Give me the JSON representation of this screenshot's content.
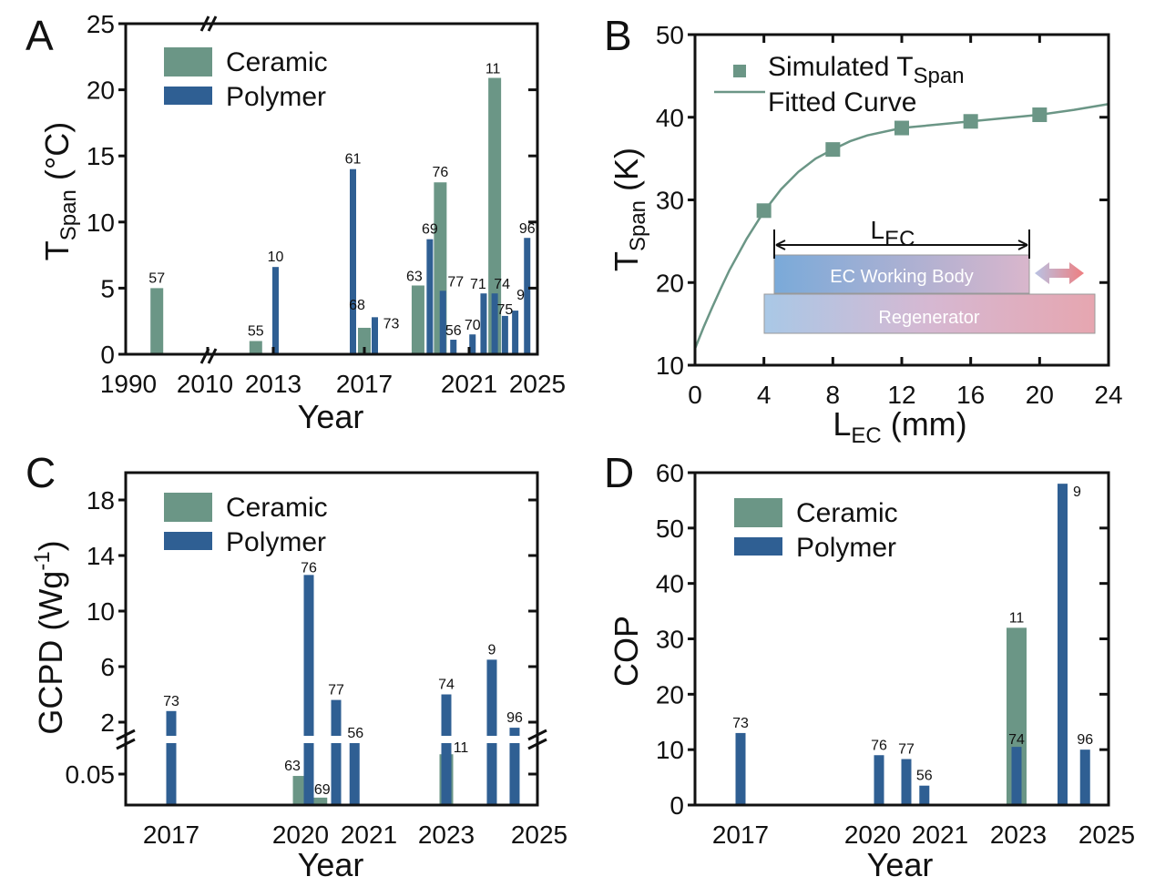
{
  "colors": {
    "ceramic": "#6b9686",
    "polymer": "#2f5f93",
    "axis": "#111111"
  },
  "chart_data": [
    {
      "panel": "A",
      "type": "bar",
      "xlabel": "Year",
      "ylabel": {
        "main": "T",
        "sub": "Span",
        "rest": " (°C)"
      },
      "ylim": [
        0,
        25
      ],
      "yticks": [
        "0",
        "5",
        "10",
        "15",
        "20",
        "25"
      ],
      "xticks": [
        "1990",
        "2010",
        "2013",
        "2017",
        "2021",
        "2025"
      ],
      "xbreak": "between 1990 and 2010",
      "legend": {
        "position": "top-left",
        "entries": [
          "Ceramic",
          "Polymer"
        ]
      },
      "bars": [
        {
          "label": "57",
          "material": "Ceramic",
          "year": 1997.6,
          "value": 5.0
        },
        {
          "label": "55",
          "material": "Ceramic",
          "year": 2012.2,
          "value": 1.0
        },
        {
          "label": "10",
          "material": "Polymer",
          "year": 2013.1,
          "value": 6.6
        },
        {
          "label": "61",
          "material": "Polymer",
          "year": 2016.5,
          "value": 14.0
        },
        {
          "label": "68",
          "material": "Ceramic",
          "year": 2017.0,
          "value": 2.0
        },
        {
          "label": "73",
          "material": "Polymer",
          "year": 2017.4,
          "value": 2.8
        },
        {
          "label": "63",
          "material": "Ceramic",
          "year": 2019.05,
          "value": 5.2
        },
        {
          "label": "76",
          "material": "Ceramic",
          "year": 2019.9,
          "value": 13.0
        },
        {
          "label": "69",
          "material": "Polymer",
          "year": 2019.5,
          "value": 8.7
        },
        {
          "label": "77",
          "material": "Polymer",
          "year": 2020.0,
          "value": 4.8
        },
        {
          "label": "56",
          "material": "Polymer",
          "year": 2020.4,
          "value": 1.1
        },
        {
          "label": "70",
          "material": "Polymer",
          "year": 2021.2,
          "value": 1.5
        },
        {
          "label": "71",
          "material": "Polymer",
          "year": 2021.85,
          "value": 4.6
        },
        {
          "label": "11",
          "material": "Ceramic",
          "year": 2022.5,
          "value": 20.9
        },
        {
          "label": "74",
          "material": "Polymer",
          "year": 2022.5,
          "value": 4.6
        },
        {
          "label": "75",
          "material": "Polymer",
          "year": 2023.1,
          "value": 2.9
        },
        {
          "label": "9",
          "material": "Polymer",
          "year": 2023.7,
          "value": 3.3
        },
        {
          "label": "96",
          "material": "Polymer",
          "year": 2024.4,
          "value": 8.8
        }
      ]
    },
    {
      "panel": "B",
      "type": "scatter",
      "xlabel": {
        "main": "L",
        "sub": "EC",
        "rest": " (mm)"
      },
      "ylabel": {
        "main": "T",
        "sub": "Span",
        "rest": " (K)"
      },
      "xlim": [
        0,
        24
      ],
      "ylim": [
        10,
        50
      ],
      "xticks": [
        "0",
        "4",
        "8",
        "12",
        "16",
        "20",
        "24"
      ],
      "yticks": [
        "10",
        "20",
        "30",
        "40",
        "50"
      ],
      "legend": {
        "position": "top-left",
        "simulated": {
          "main": "Simulated T",
          "sub": "Span"
        },
        "fitted": "Fitted Curve"
      },
      "points": [
        [
          4,
          28.7
        ],
        [
          8,
          36.1
        ],
        [
          12,
          38.7
        ],
        [
          16,
          39.5
        ],
        [
          20,
          40.3
        ]
      ],
      "fitted_curve": [
        [
          0,
          12
        ],
        [
          0.5,
          14.6
        ],
        [
          1,
          17
        ],
        [
          1.5,
          19.3
        ],
        [
          2,
          21.5
        ],
        [
          3,
          25.3
        ],
        [
          4,
          28.6
        ],
        [
          5,
          31.3
        ],
        [
          6,
          33.4
        ],
        [
          7,
          35
        ],
        [
          8,
          36.1
        ],
        [
          9,
          37.1
        ],
        [
          10,
          37.8
        ],
        [
          12,
          38.7
        ],
        [
          14,
          39.1
        ],
        [
          16,
          39.5
        ],
        [
          18,
          39.9
        ],
        [
          20,
          40.3
        ],
        [
          22,
          40.9
        ],
        [
          24,
          41.6
        ]
      ],
      "inset": {
        "dimension": {
          "main": "L",
          "sub": "EC"
        },
        "working_body": "EC Working Body",
        "regenerator": "Regenerator"
      }
    },
    {
      "panel": "C",
      "type": "bar",
      "xlabel": "Year",
      "ylabel": {
        "main": "GCPD (Wg",
        "sup": "-1",
        "rest": ")"
      },
      "ybreak": "between 0.1 and 1",
      "yticks_lower": [
        "0.05"
      ],
      "yticks_upper": [
        "2",
        "6",
        "10",
        "14",
        "18"
      ],
      "xticks": [
        "2017",
        "2020",
        "2021",
        "2023",
        "2025"
      ],
      "legend": {
        "position": "top-left",
        "entries": [
          "Ceramic",
          "Polymer"
        ]
      },
      "bars": [
        {
          "label": "73",
          "material": "Polymer",
          "year": 2017.0,
          "value": 2.8
        },
        {
          "label": "63",
          "material": "Ceramic",
          "year": 2019.98,
          "value": 0.047
        },
        {
          "label": "76",
          "material": "Polymer",
          "year": 2020.12,
          "value": 12.6
        },
        {
          "label": "69",
          "material": "Ceramic",
          "year": 2020.29,
          "value": 0.012
        },
        {
          "label": "77",
          "material": "Polymer",
          "year": 2020.52,
          "value": 3.6
        },
        {
          "label": "56",
          "material": "Polymer",
          "year": 2020.79,
          "value": 0.5
        },
        {
          "label": "11",
          "material": "Ceramic",
          "year": 2023.0,
          "value": 0.082
        },
        {
          "label": "74",
          "material": "Polymer",
          "year": 2023.0,
          "value": 4.0
        },
        {
          "label": "9",
          "material": "Polymer",
          "year": 2023.98,
          "value": 6.5
        },
        {
          "label": "96",
          "material": "Polymer",
          "year": 2024.47,
          "value": 1.6
        }
      ]
    },
    {
      "panel": "D",
      "type": "bar",
      "xlabel": "Year",
      "ylabel": "COP",
      "ylim": [
        0,
        60
      ],
      "yticks": [
        "0",
        "10",
        "20",
        "30",
        "40",
        "50",
        "60"
      ],
      "xticks": [
        "2017",
        "2020",
        "2021",
        "2023",
        "2025"
      ],
      "legend": {
        "position": "top-left",
        "entries": [
          "Ceramic",
          "Polymer"
        ]
      },
      "bars": [
        {
          "label": "73",
          "material": "Polymer",
          "year": 2017.0,
          "value": 13.0
        },
        {
          "label": "76",
          "material": "Polymer",
          "year": 2020.0,
          "value": 9.0
        },
        {
          "label": "77",
          "material": "Polymer",
          "year": 2020.5,
          "value": 8.3
        },
        {
          "label": "56",
          "material": "Polymer",
          "year": 2020.83,
          "value": 3.5
        },
        {
          "label": "11",
          "material": "Ceramic",
          "year": 2023.0,
          "value": 32.0
        },
        {
          "label": "74",
          "material": "Polymer",
          "year": 2023.0,
          "value": 10.5
        },
        {
          "label": "9",
          "material": "Polymer",
          "year": 2024.02,
          "value": 58.0
        },
        {
          "label": "96",
          "material": "Polymer",
          "year": 2024.52,
          "value": 10.0
        }
      ]
    }
  ]
}
